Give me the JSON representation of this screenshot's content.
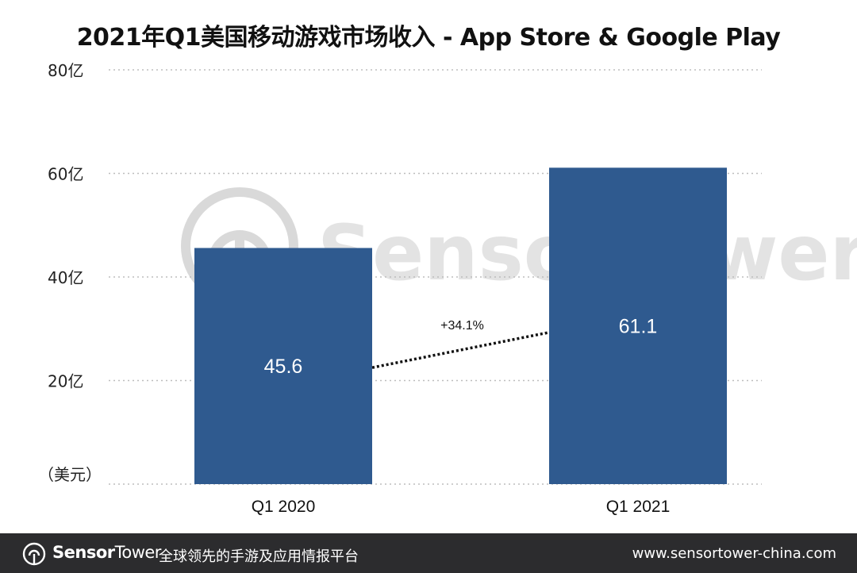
{
  "chart_data": {
    "type": "bar",
    "title": "2021年Q1美国移动游戏市场收入 - App Store & Google Play",
    "unit_label": "（美元）",
    "categories": [
      "Q1  2020",
      "Q1 2021"
    ],
    "values": [
      45.6,
      61.1
    ],
    "value_labels": [
      "45.6",
      "61.1"
    ],
    "y_ticks": [
      {
        "value": 20,
        "label": "20亿"
      },
      {
        "value": 40,
        "label": "40亿"
      },
      {
        "value": 60,
        "label": "60亿"
      },
      {
        "value": 80,
        "label": "80亿"
      }
    ],
    "ylim": [
      0,
      80
    ],
    "grid": true,
    "bar_color": "#2f5a8f",
    "grid_color": "#bdbdbd",
    "annotation": {
      "text": "+34.1%",
      "from_value": 22.5,
      "to_value": 29.3
    },
    "watermark": "SensorTower"
  },
  "footer": {
    "brand_bold": "Sensor",
    "brand_rest": "Tower",
    "tagline": "全球领先的手游及应用情报平台",
    "website": "www.sensortower-china.com",
    "background": "#2c2c2e"
  }
}
